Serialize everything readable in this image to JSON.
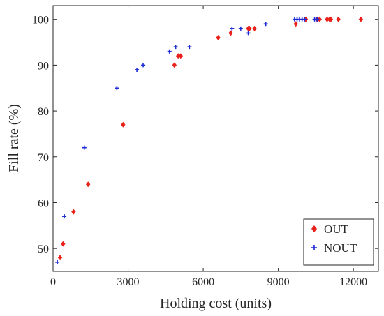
{
  "chart_data": {
    "type": "scatter",
    "xlabel": "Holding cost (units)",
    "ylabel": "Fill rate (%)",
    "xlim": [
      0,
      13000
    ],
    "ylim": [
      45,
      103
    ],
    "xticks": [
      0,
      3000,
      6000,
      9000,
      12000
    ],
    "yticks": [
      50,
      60,
      70,
      80,
      90,
      100
    ],
    "xtick_labels": [
      "0",
      "3000",
      "6000",
      "9000",
      "12000"
    ],
    "ytick_labels": [
      "50",
      "60",
      "70",
      "80",
      "90",
      "100"
    ],
    "grid": false,
    "legend_position": "bottom-right",
    "series": [
      {
        "name": "OUT",
        "color": "#e8221b",
        "marker": "diamond",
        "points": [
          [
            280,
            48
          ],
          [
            400,
            51
          ],
          [
            820,
            58
          ],
          [
            1400,
            64
          ],
          [
            2800,
            77
          ],
          [
            4850,
            90
          ],
          [
            5000,
            92
          ],
          [
            5100,
            92
          ],
          [
            6600,
            96
          ],
          [
            7100,
            97
          ],
          [
            7800,
            98
          ],
          [
            7850,
            98
          ],
          [
            8050,
            98
          ],
          [
            9700,
            99
          ],
          [
            10100,
            100
          ],
          [
            10550,
            100
          ],
          [
            10650,
            100
          ],
          [
            10950,
            100
          ],
          [
            11050,
            100
          ],
          [
            11100,
            100
          ],
          [
            11400,
            100
          ],
          [
            12300,
            100
          ]
        ]
      },
      {
        "name": "NOUT",
        "color": "#1d2bd6",
        "marker": "plus",
        "points": [
          [
            170,
            47
          ],
          [
            450,
            57
          ],
          [
            1250,
            72
          ],
          [
            2550,
            85
          ],
          [
            3350,
            89
          ],
          [
            3600,
            90
          ],
          [
            4650,
            93
          ],
          [
            4900,
            94
          ],
          [
            5450,
            94
          ],
          [
            7150,
            98
          ],
          [
            7500,
            98
          ],
          [
            7800,
            97
          ],
          [
            8500,
            99
          ],
          [
            9650,
            100
          ],
          [
            9750,
            100
          ],
          [
            9850,
            100
          ],
          [
            9950,
            100
          ],
          [
            10050,
            100
          ],
          [
            10450,
            100
          ],
          [
            10550,
            100
          ]
        ]
      }
    ]
  }
}
